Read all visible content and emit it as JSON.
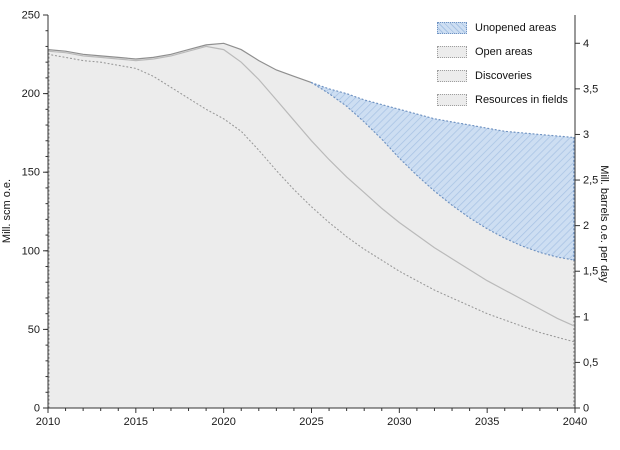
{
  "legend": [
    {
      "label": "Unopened areas",
      "swatch": "blue-hatched"
    },
    {
      "label": "Open areas",
      "swatch": "gray-dotted"
    },
    {
      "label": "Discoveries",
      "swatch": "gray-dotted"
    },
    {
      "label": "Resources in fields",
      "swatch": "gray-dotted"
    }
  ],
  "axes": {
    "left": {
      "title": "Mill. scm o.e.",
      "tick_values": [
        0,
        50,
        100,
        150,
        200,
        250
      ],
      "tick_labels": [
        "0",
        "50",
        "100",
        "150",
        "200",
        "250"
      ],
      "range": [
        0,
        250
      ]
    },
    "right": {
      "title": "Mill. barrels o.e. per day",
      "tick_values": [
        0,
        0.5,
        1,
        1.5,
        2,
        2.5,
        3,
        3.5,
        4
      ],
      "tick_labels": [
        "0",
        "0,5",
        "1",
        "1,5",
        "2",
        "2,5",
        "3",
        "3,5",
        "4"
      ],
      "range": [
        0,
        4.31
      ]
    },
    "x": {
      "tick_values": [
        2010,
        2015,
        2020,
        2025,
        2030,
        2035,
        2040
      ],
      "tick_labels": [
        "2010",
        "2015",
        "2020",
        "2025",
        "2030",
        "2035",
        "2040"
      ],
      "range": [
        2010,
        2040
      ],
      "minor_tick_step": 1
    }
  },
  "colors": {
    "unopened_fill": "#cddef2",
    "unopened_hatch": "#a8c3e4",
    "unopened_border": "#7093c2",
    "gray_fill": "#ececec",
    "total_line": "#8f8f8f",
    "discoveries_line": "#bababa",
    "resources_line": "#9a9a9a",
    "axis": "#333333",
    "text": "#1a1a1a"
  },
  "chart_data": {
    "type": "area",
    "stacked": true,
    "title": "",
    "xlabel": "",
    "ylabel_left": "Mill. scm o.e.",
    "ylabel_right": "Mill. barrels o.e. per day",
    "ylim_left": [
      0,
      250
    ],
    "ylim_right": [
      0,
      4.31
    ],
    "xlim": [
      2010,
      2040
    ],
    "grid": false,
    "legend_position": "top-right-inside",
    "x": [
      2010,
      2011,
      2012,
      2013,
      2014,
      2015,
      2016,
      2017,
      2018,
      2019,
      2020,
      2021,
      2022,
      2023,
      2024,
      2025,
      2026,
      2027,
      2028,
      2029,
      2030,
      2031,
      2032,
      2033,
      2034,
      2035,
      2036,
      2037,
      2038,
      2039,
      2040
    ],
    "cumulative_stack_tops": [
      {
        "name": "Resources in fields",
        "values": [
          225,
          223,
          221,
          220,
          218,
          216,
          211,
          204,
          197,
          190,
          184,
          176,
          164,
          151,
          139,
          128,
          118,
          109,
          101,
          94,
          87,
          81,
          75,
          70,
          65,
          60,
          56,
          52,
          48,
          45,
          42
        ]
      },
      {
        "name": "Discoveries",
        "values": [
          227,
          226,
          224,
          223,
          222,
          221,
          222,
          224,
          227,
          230,
          228,
          220,
          209,
          196,
          183,
          170,
          158,
          147,
          137,
          127,
          118,
          110,
          102,
          95,
          88,
          81,
          75,
          69,
          63,
          57,
          52
        ]
      },
      {
        "name": "Open areas",
        "values": [
          228,
          227,
          225,
          224,
          223,
          222,
          223,
          225,
          228,
          231,
          232,
          228,
          221,
          215,
          211,
          207,
          200,
          192,
          182,
          171,
          159,
          148,
          138,
          129,
          121,
          114,
          108,
          103,
          99,
          96,
          94
        ]
      },
      {
        "name": "Unopened areas",
        "values": [
          228,
          227,
          225,
          224,
          223,
          222,
          223,
          225,
          228,
          231,
          232,
          228,
          221,
          215,
          211,
          207,
          203,
          200,
          196,
          193,
          190,
          187,
          184,
          182,
          180,
          178,
          176,
          175,
          174,
          173,
          172
        ]
      }
    ]
  }
}
